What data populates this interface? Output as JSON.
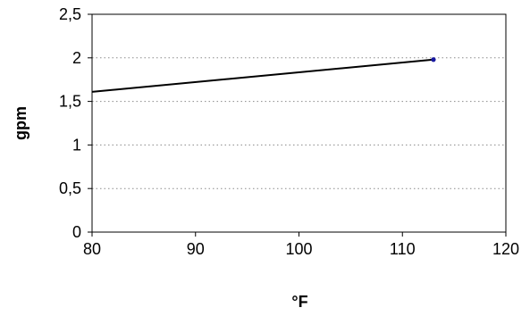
{
  "chart_data": {
    "type": "line",
    "xlabel": "°F",
    "ylabel": "gpm",
    "xlim": [
      80,
      120
    ],
    "ylim": [
      0,
      2.5
    ],
    "x_ticks": [
      80,
      90,
      100,
      110,
      120
    ],
    "x_tick_labels": [
      "80",
      "90",
      "100",
      "110",
      "120"
    ],
    "y_ticks": [
      0,
      0.5,
      1,
      1.5,
      2,
      2.5
    ],
    "y_tick_labels": [
      "0",
      "0,5",
      "1",
      "1,5",
      "2",
      "2,5"
    ],
    "grid": "horizontal-dotted",
    "series": [
      {
        "x": [
          80,
          113
        ],
        "y": [
          1.61,
          1.98
        ],
        "color": "#000000",
        "marker_color": "#1a1aa0"
      }
    ]
  }
}
